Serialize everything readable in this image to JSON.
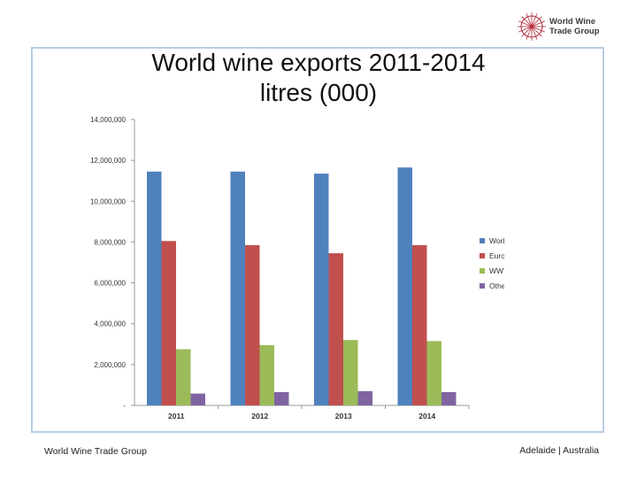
{
  "header": {
    "title_line1": "World wine exports 2011-2014",
    "title_line2": "litres (000)"
  },
  "logo": {
    "line1": "World Wine",
    "line2": "Trade Group",
    "icon": "compass-rose-icon",
    "color": "#b32a3a"
  },
  "footer": {
    "left": "World Wine Trade Group",
    "right": "Adelaide | Australia"
  },
  "chart_data": {
    "type": "bar",
    "categories": [
      "2011",
      "2012",
      "2013",
      "2014"
    ],
    "series": [
      {
        "name": "World Total",
        "color": "#4f81bd",
        "values": [
          11450000,
          11450000,
          11350000,
          11650000
        ]
      },
      {
        "name": "European Union",
        "color": "#c0504d",
        "values": [
          8050000,
          7850000,
          7450000,
          7850000
        ]
      },
      {
        "name": "WWTG",
        "color": "#9bbb59",
        "values": [
          2750000,
          2950000,
          3200000,
          3150000
        ]
      },
      {
        "name": "Other",
        "color": "#8064a2",
        "values": [
          580000,
          650000,
          700000,
          650000
        ]
      }
    ],
    "yticks": [
      "-",
      "2,000,000",
      "4,000,000",
      "6,000,000",
      "8,000,000",
      "10,000,000",
      "12,000,000",
      "14,000,000"
    ],
    "ylim": [
      0,
      14000000
    ],
    "grid": false,
    "legend": "right"
  }
}
